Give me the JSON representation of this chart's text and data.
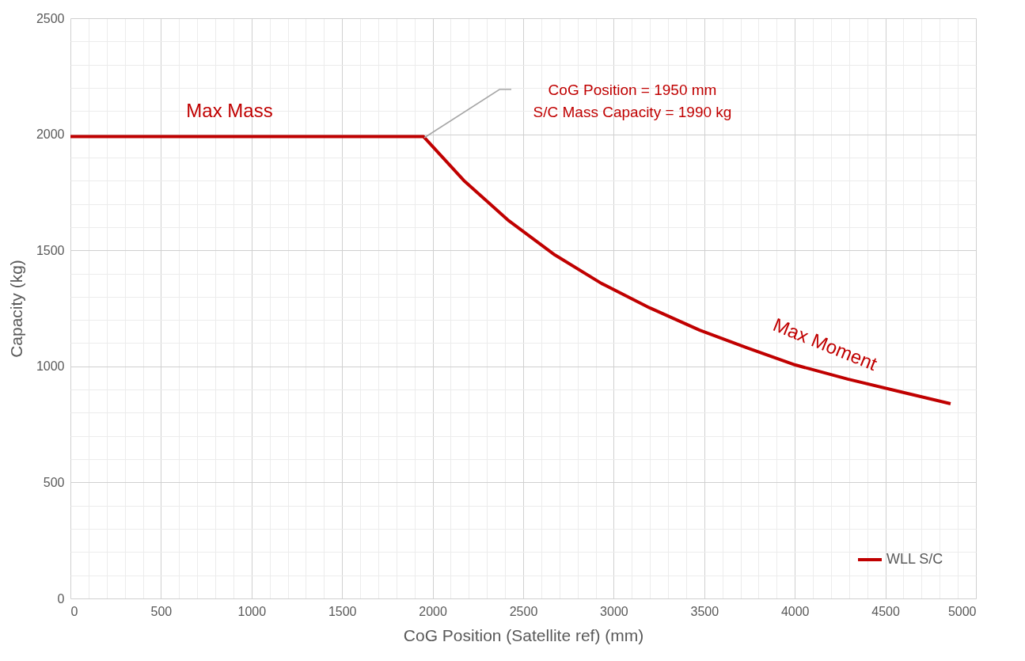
{
  "chart_data": {
    "type": "line",
    "xlabel": "CoG Position (Satellite ref) (mm)",
    "ylabel": "Capacity (kg)",
    "series": [
      {
        "name": "WLL S/C",
        "color": "#c00000",
        "x": [
          0,
          1950,
          2172,
          2421,
          2675,
          2933,
          3199,
          3475,
          3733,
          4003,
          4292,
          4585,
          4860
        ],
        "values": [
          1990,
          1990,
          1801,
          1627,
          1480,
          1357,
          1252,
          1156,
          1081,
          1006,
          945,
          890,
          839
        ]
      }
    ],
    "xlim": [
      0,
      5000
    ],
    "xticks": [
      0,
      {
        "value": 100,
        "label": null
      },
      {
        "value": 200,
        "label": null
      },
      {
        "value": 300,
        "label": null
      },
      {
        "value": 400,
        "label": null
      },
      500,
      {
        "value": 600,
        "label": null
      },
      {
        "value": 700,
        "label": null
      },
      {
        "value": 800,
        "label": null
      },
      {
        "value": 900,
        "label": null
      },
      1000,
      {
        "value": 1100,
        "label": null
      },
      {
        "value": 1200,
        "label": null
      },
      {
        "value": 1300,
        "label": null
      },
      {
        "value": 1400,
        "label": null
      },
      1500,
      {
        "value": 1600,
        "label": null
      },
      {
        "value": 1700,
        "label": null
      },
      {
        "value": 1800,
        "label": null
      },
      {
        "value": 1900,
        "label": null
      },
      2000,
      {
        "value": 2100,
        "label": null
      },
      {
        "value": 2200,
        "label": null
      },
      {
        "value": 2300,
        "label": null
      },
      {
        "value": 2400,
        "label": null
      },
      2500,
      {
        "value": 2600,
        "label": null
      },
      {
        "value": 2700,
        "label": null
      },
      {
        "value": 2800,
        "label": null
      },
      {
        "value": 2900,
        "label": null
      },
      3000,
      {
        "value": 3100,
        "label": null
      },
      {
        "value": 3200,
        "label": null
      },
      {
        "value": 3300,
        "label": null
      },
      {
        "value": 3400,
        "label": null
      },
      3500,
      {
        "value": 3600,
        "label": null
      },
      {
        "value": 3700,
        "label": null
      },
      {
        "value": 3800,
        "label": null
      },
      {
        "value": 3900,
        "label": null
      },
      4000,
      {
        "value": 4100,
        "label": null
      },
      {
        "value": 4200,
        "label": null
      },
      {
        "value": 4300,
        "label": null
      },
      {
        "value": 4400,
        "label": null
      },
      4500,
      {
        "value": 4600,
        "label": null
      },
      {
        "value": 4700,
        "label": null
      },
      {
        "value": 4800,
        "label": null
      },
      {
        "value": 4900,
        "label": null
      },
      5000
    ],
    "ylim": [
      0,
      2500
    ],
    "yticks": [
      0,
      {
        "value": 100,
        "label": null
      },
      {
        "value": 200,
        "label": null
      },
      {
        "value": 300,
        "label": null
      },
      {
        "value": 400,
        "label": null
      },
      500,
      {
        "value": 600,
        "label": null
      },
      {
        "value": 700,
        "label": null
      },
      {
        "value": 800,
        "label": null
      },
      {
        "value": 900,
        "label": null
      },
      1000,
      {
        "value": 1100,
        "label": null
      },
      {
        "value": 1200,
        "label": null
      },
      {
        "value": 1300,
        "label": null
      },
      {
        "value": 1400,
        "label": null
      },
      1500,
      {
        "value": 1600,
        "label": null
      },
      {
        "value": 1700,
        "label": null
      },
      {
        "value": 1800,
        "label": null
      },
      {
        "value": 1900,
        "label": null
      },
      2000,
      {
        "value": 2100,
        "label": null
      },
      {
        "value": 2200,
        "label": null
      },
      {
        "value": 2300,
        "label": null
      },
      {
        "value": 2400,
        "label": null
      },
      2500
    ],
    "annotations": [
      "Max Mass",
      "Max Moment",
      "CoG Position = 1950 mm\nS/C Mass Capacity = 1990 kg"
    ],
    "grid": true,
    "legend": "bottom right",
    "marker": "none",
    "line_style": "solid"
  }
}
